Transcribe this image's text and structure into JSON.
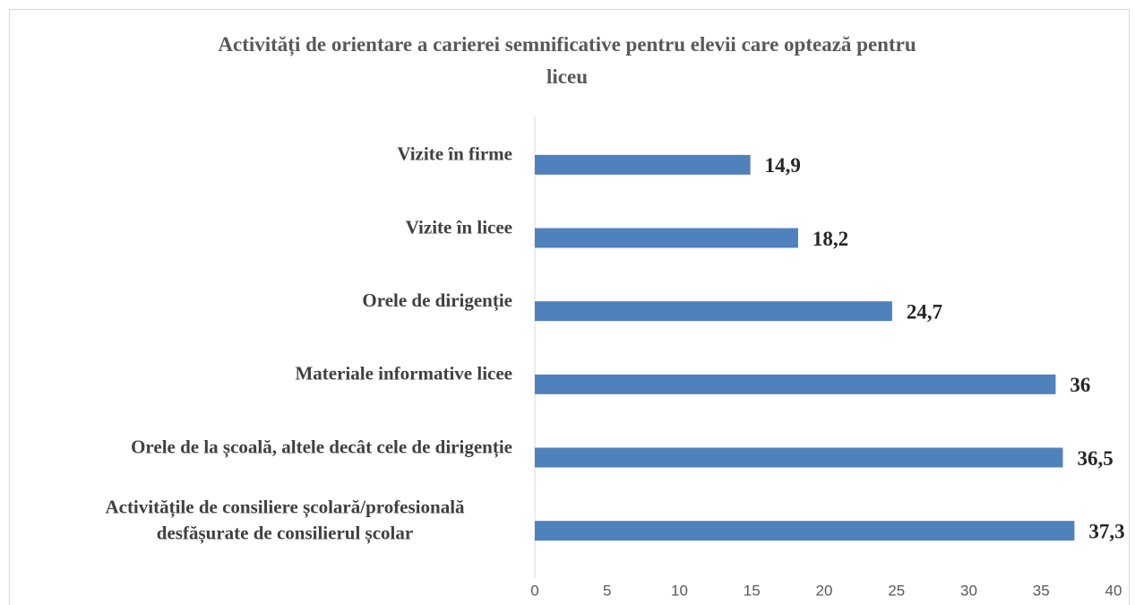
{
  "chart_data": {
    "type": "barh",
    "title": "Activități de orientare a carierei semnificative pentru elevii care optează pentru\nliceu",
    "categories": [
      "Vizite în firme",
      "Vizite în licee",
      "Orele de dirigenție ",
      "Materiale informative licee",
      "Orele de la școală, altele decât cele de dirigenție",
      "Activitățile de consiliere școlară/profesională\ndesfășurate de consilierul școlar"
    ],
    "values": [
      14.9,
      18.2,
      24.7,
      36,
      36.5,
      37.3
    ],
    "value_labels": [
      "14,9",
      "18,2",
      "24,7",
      "36",
      "36,5",
      "37,3"
    ],
    "color": "#4f81bd",
    "xlim": [
      0,
      40
    ],
    "xticks": [
      0,
      5,
      10,
      15,
      20,
      25,
      30,
      35,
      40
    ],
    "grid": false
  }
}
